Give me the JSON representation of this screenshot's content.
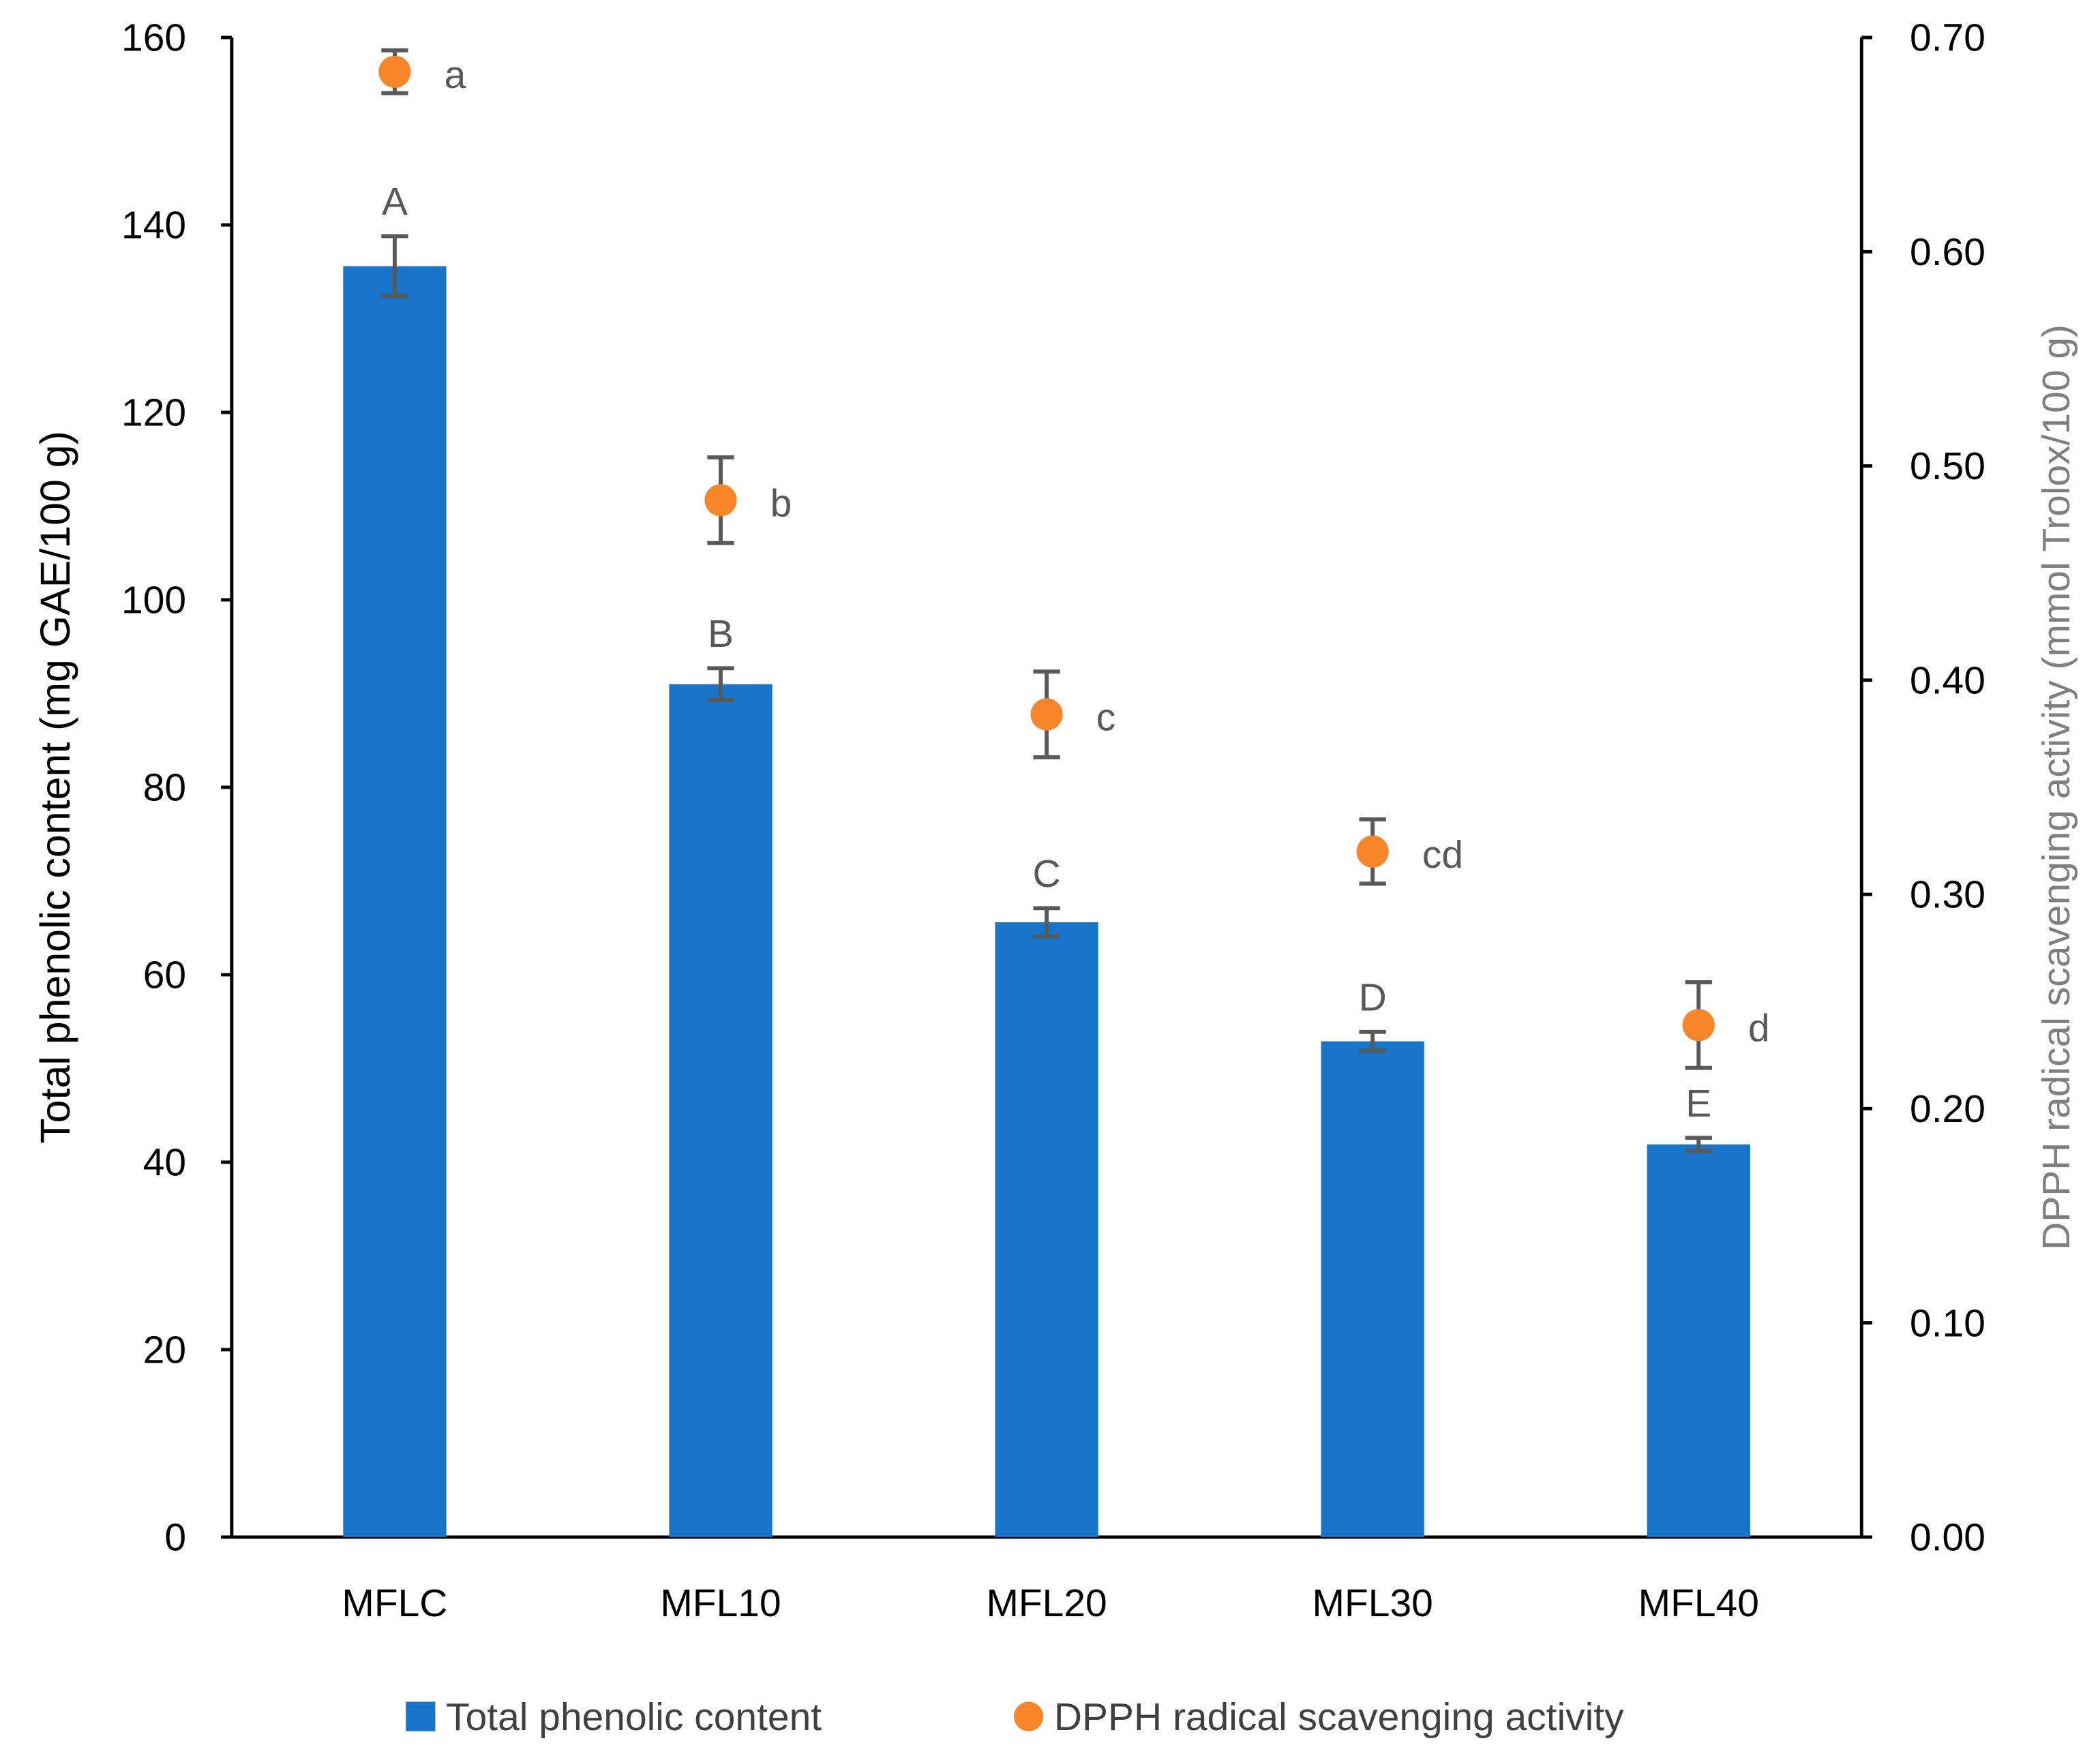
{
  "chart_data": {
    "type": "bar",
    "categories": [
      "MFLC",
      "MFL10",
      "MFL20",
      "MFL30",
      "MFL40"
    ],
    "series": [
      {
        "name": "Total phenolic content",
        "kind": "bar",
        "axis": "left",
        "color": "#1874C8",
        "values": [
          135.6,
          91.0,
          65.6,
          52.9,
          41.9
        ],
        "errors": [
          3.2,
          1.7,
          1.5,
          1.0,
          0.7
        ],
        "letters": [
          "A",
          "B",
          "C",
          "D",
          "E"
        ]
      },
      {
        "name": "DPPH radical scavenging activity",
        "kind": "scatter",
        "axis": "right",
        "color": "#F7862A",
        "values": [
          0.684,
          0.484,
          0.384,
          0.32,
          0.239
        ],
        "errors": [
          0.01,
          0.02,
          0.02,
          0.015,
          0.02
        ],
        "letters": [
          "a",
          "b",
          "c",
          "cd",
          "d"
        ]
      }
    ],
    "ylabel": "Total phenolic content (mg GAE/100 g)",
    "y2label": "DPPH radical scavenging activity (mmol Trolox/100 g)",
    "ylim": [
      0,
      160
    ],
    "yticks": [
      "0",
      "20",
      "40",
      "60",
      "80",
      "100",
      "120",
      "140",
      "160"
    ],
    "y2lim": [
      0,
      0.7
    ],
    "y2ticks": [
      "0.00",
      "0.10",
      "0.20",
      "0.30",
      "0.40",
      "0.50",
      "0.60",
      "0.70"
    ],
    "grid": false,
    "legend_position": "bottom"
  }
}
